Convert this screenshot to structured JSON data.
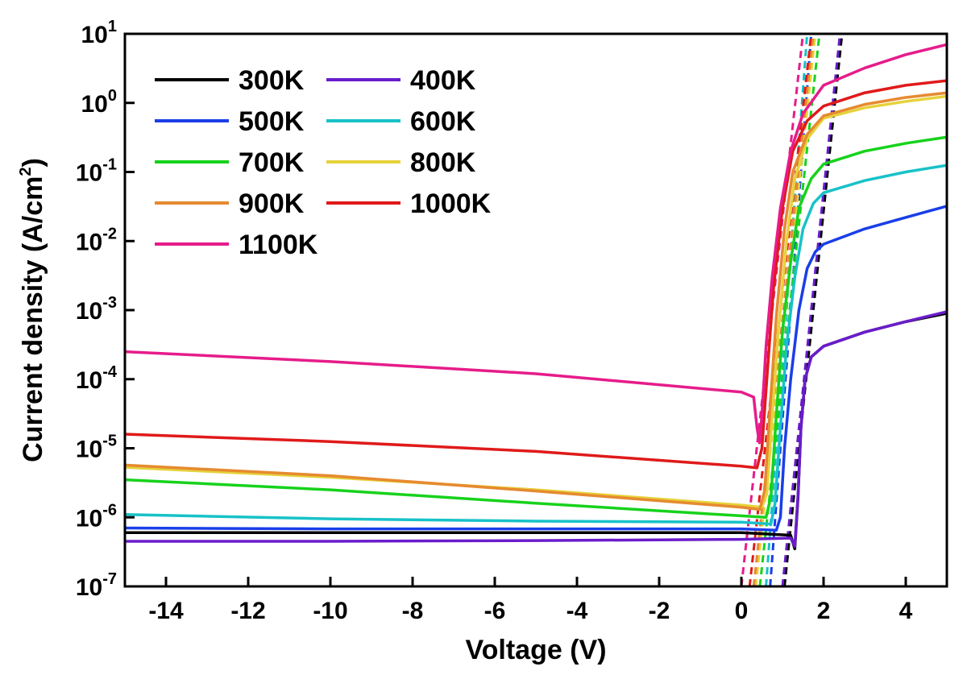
{
  "chart_data": {
    "type": "line",
    "xlabel": "Voltage (V)",
    "ylabel": "Current density (A/cm",
    "ylabel_sup": "2",
    "ylabel_close": ")",
    "xlim": [
      -15,
      5
    ],
    "ylim": [
      1e-07,
      10
    ],
    "yscale": "log",
    "grid": false,
    "legend_position": "top-left",
    "x_ticks": [
      {
        "value": -14,
        "label": "-14"
      },
      {
        "value": -12,
        "label": "-12"
      },
      {
        "value": -10,
        "label": "-10"
      },
      {
        "value": -8,
        "label": "-8"
      },
      {
        "value": -6,
        "label": "-6"
      },
      {
        "value": -4,
        "label": "-4"
      },
      {
        "value": -2,
        "label": "-2"
      },
      {
        "value": 0,
        "label": "0"
      },
      {
        "value": 2,
        "label": "2"
      },
      {
        "value": 4,
        "label": "4"
      }
    ],
    "y_ticks": [
      {
        "value": 1e-07,
        "base": "10",
        "exp": "-7"
      },
      {
        "value": 1e-06,
        "base": "10",
        "exp": "-6"
      },
      {
        "value": 1e-05,
        "base": "10",
        "exp": "-5"
      },
      {
        "value": 0.0001,
        "base": "10",
        "exp": "-4"
      },
      {
        "value": 0.001,
        "base": "10",
        "exp": "-3"
      },
      {
        "value": 0.01,
        "base": "10",
        "exp": "-2"
      },
      {
        "value": 0.1,
        "base": "10",
        "exp": "-1"
      },
      {
        "value": 1,
        "base": "10",
        "exp": "0"
      },
      {
        "value": 10,
        "base": "10",
        "exp": "1"
      }
    ],
    "series": [
      {
        "name": "300K",
        "color": "#000000",
        "points": [
          [
            -15,
            6e-07
          ],
          [
            -10,
            6e-07
          ],
          [
            -5,
            6e-07
          ],
          [
            0,
            6e-07
          ],
          [
            1.2,
            5.5e-07
          ],
          [
            1.3,
            3.5e-07
          ],
          [
            1.38,
            2e-06
          ],
          [
            1.45,
            2e-05
          ],
          [
            1.55,
            0.0001
          ],
          [
            1.7,
            0.00021
          ],
          [
            2,
            0.0003
          ],
          [
            3,
            0.00048
          ],
          [
            4,
            0.00068
          ],
          [
            5,
            0.0009
          ]
        ]
      },
      {
        "name": "400K",
        "color": "#6a1ccc",
        "points": [
          [
            -15,
            4.5e-07
          ],
          [
            -10,
            4.5e-07
          ],
          [
            -5,
            4.6e-07
          ],
          [
            0,
            4.8e-07
          ],
          [
            1.2,
            5e-07
          ],
          [
            1.3,
            3.8e-07
          ],
          [
            1.38,
            2.2e-06
          ],
          [
            1.45,
            2e-05
          ],
          [
            1.55,
            0.0001
          ],
          [
            1.7,
            0.00021
          ],
          [
            2,
            0.0003
          ],
          [
            3,
            0.00048
          ],
          [
            4,
            0.00068
          ],
          [
            5,
            0.00095
          ]
        ]
      },
      {
        "name": "500K",
        "color": "#1a3ee8",
        "points": [
          [
            -15,
            7e-07
          ],
          [
            -10,
            6.8e-07
          ],
          [
            -5,
            6.8e-07
          ],
          [
            0,
            6.8e-07
          ],
          [
            0.85,
            6.5e-07
          ],
          [
            0.95,
            1e-06
          ],
          [
            1.05,
            1e-05
          ],
          [
            1.2,
            0.0001
          ],
          [
            1.4,
            0.001
          ],
          [
            1.6,
            0.004
          ],
          [
            1.8,
            0.007
          ],
          [
            2,
            0.009
          ],
          [
            3,
            0.015
          ],
          [
            4,
            0.022
          ],
          [
            5,
            0.032
          ]
        ]
      },
      {
        "name": "600K",
        "color": "#17c2c8",
        "points": [
          [
            -15,
            1.1e-06
          ],
          [
            -10,
            9.5e-07
          ],
          [
            -5,
            8.8e-07
          ],
          [
            0,
            8.5e-07
          ],
          [
            0.72,
            8e-07
          ],
          [
            0.82,
            1.6e-06
          ],
          [
            0.95,
            2e-05
          ],
          [
            1.1,
            0.0003
          ],
          [
            1.3,
            0.003
          ],
          [
            1.5,
            0.015
          ],
          [
            1.75,
            0.035
          ],
          [
            2,
            0.05
          ],
          [
            3,
            0.075
          ],
          [
            4,
            0.1
          ],
          [
            5,
            0.125
          ]
        ]
      },
      {
        "name": "700K",
        "color": "#17d21c",
        "points": [
          [
            -15,
            3.5e-06
          ],
          [
            -10,
            2.5e-06
          ],
          [
            -5,
            1.6e-06
          ],
          [
            0,
            1.05e-06
          ],
          [
            0.6,
            1e-06
          ],
          [
            0.72,
            2e-06
          ],
          [
            0.85,
            3e-05
          ],
          [
            1,
            0.0005
          ],
          [
            1.2,
            0.005
          ],
          [
            1.4,
            0.03
          ],
          [
            1.7,
            0.08
          ],
          [
            2,
            0.13
          ],
          [
            3,
            0.2
          ],
          [
            4,
            0.26
          ],
          [
            5,
            0.32
          ]
        ]
      },
      {
        "name": "800K",
        "color": "#e6d23a",
        "points": [
          [
            -15,
            5.3e-06
          ],
          [
            -10,
            3.8e-06
          ],
          [
            -5,
            2.5e-06
          ],
          [
            0,
            1.5e-06
          ],
          [
            0.5,
            1.4e-06
          ],
          [
            0.62,
            2.2e-06
          ],
          [
            0.75,
            3e-05
          ],
          [
            0.9,
            0.0005
          ],
          [
            1.1,
            0.01
          ],
          [
            1.3,
            0.08
          ],
          [
            1.6,
            0.3
          ],
          [
            2,
            0.6
          ],
          [
            3,
            0.85
          ],
          [
            4,
            1.05
          ],
          [
            5,
            1.25
          ]
        ]
      },
      {
        "name": "900K",
        "color": "#e68a30",
        "points": [
          [
            -15,
            5.7e-06
          ],
          [
            -10,
            4e-06
          ],
          [
            -5,
            2.4e-06
          ],
          [
            0,
            1.4e-06
          ],
          [
            0.45,
            1.3e-06
          ],
          [
            0.57,
            2.5e-06
          ],
          [
            0.7,
            4e-05
          ],
          [
            0.85,
            0.0008
          ],
          [
            1.05,
            0.015
          ],
          [
            1.25,
            0.1
          ],
          [
            1.6,
            0.35
          ],
          [
            2,
            0.65
          ],
          [
            3,
            0.95
          ],
          [
            4,
            1.2
          ],
          [
            5,
            1.4
          ]
        ]
      },
      {
        "name": "1000K",
        "color": "#e01a1a",
        "points": [
          [
            -15,
            1.6e-05
          ],
          [
            -10,
            1.25e-05
          ],
          [
            -5,
            9e-06
          ],
          [
            0,
            5.5e-06
          ],
          [
            0.38,
            5.2e-06
          ],
          [
            0.5,
            1e-05
          ],
          [
            0.62,
            0.0001
          ],
          [
            0.78,
            0.002
          ],
          [
            1,
            0.03
          ],
          [
            1.25,
            0.2
          ],
          [
            1.6,
            0.55
          ],
          [
            2,
            0.9
          ],
          [
            3,
            1.4
          ],
          [
            4,
            1.8
          ],
          [
            5,
            2.1
          ]
        ]
      },
      {
        "name": "1100K",
        "color": "#e61c8a",
        "points": [
          [
            -15,
            0.00025
          ],
          [
            -10,
            0.00018
          ],
          [
            -5,
            0.00012
          ],
          [
            0,
            6.5e-05
          ],
          [
            0.3,
            5.5e-05
          ],
          [
            0.38,
            2e-05
          ],
          [
            0.44,
            1.2e-05
          ],
          [
            0.5,
            3e-05
          ],
          [
            0.6,
            0.0003
          ],
          [
            0.75,
            0.003
          ],
          [
            0.95,
            0.03
          ],
          [
            1.2,
            0.2
          ],
          [
            1.5,
            0.7
          ],
          [
            2,
            1.8
          ],
          [
            3,
            3.2
          ],
          [
            4,
            5
          ],
          [
            5,
            7
          ]
        ]
      }
    ],
    "fits": [
      {
        "color": "#000000",
        "points": [
          [
            1.05,
            1e-07
          ],
          [
            2.45,
            10
          ]
        ]
      },
      {
        "color": "#6a1ccc",
        "points": [
          [
            1.0,
            1e-07
          ],
          [
            2.4,
            10
          ]
        ]
      },
      {
        "color": "#1a3ee8",
        "points": [
          [
            0.7,
            1e-07
          ],
          [
            1.7,
            10
          ]
        ]
      },
      {
        "color": "#17c2c8",
        "points": [
          [
            0.6,
            1e-07
          ],
          [
            1.6,
            10
          ]
        ]
      },
      {
        "color": "#17d21c",
        "points": [
          [
            0.45,
            1e-07
          ],
          [
            1.9,
            10
          ]
        ]
      },
      {
        "color": "#e6d23a",
        "points": [
          [
            0.35,
            1e-07
          ],
          [
            1.8,
            10
          ]
        ]
      },
      {
        "color": "#e68a30",
        "points": [
          [
            0.3,
            1e-07
          ],
          [
            1.75,
            10
          ]
        ]
      },
      {
        "color": "#e01a1a",
        "points": [
          [
            0.2,
            1e-07
          ],
          [
            1.7,
            10
          ]
        ]
      },
      {
        "color": "#e61c8a",
        "points": [
          [
            0.0,
            1e-07
          ],
          [
            1.5,
            10
          ]
        ]
      }
    ],
    "legend_columns": 2
  }
}
